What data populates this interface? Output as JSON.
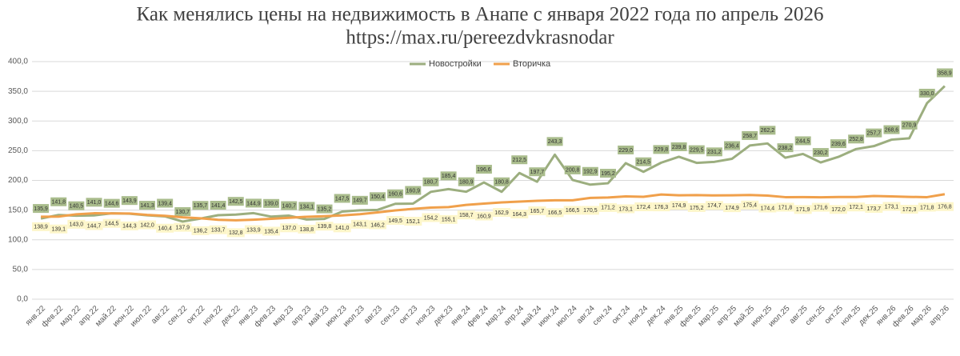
{
  "chart_data": {
    "type": "line",
    "title": "Как менялись цены на недвижимость в Анапе с января 2022 года по апрель 2026",
    "subtitle": "https://max.ru/pereezdvkrasnodar",
    "categories": [
      "янв.22",
      "фев.22",
      "мар.22",
      "апр.22",
      "май.22",
      "июн.22",
      "июл.22",
      "авг.22",
      "сен.22",
      "окт.22",
      "ноя.22",
      "дек.22",
      "янв.23",
      "фев.23",
      "мар.23",
      "апр.23",
      "май.23",
      "июн.23",
      "июл.23",
      "авг.23",
      "сен.23",
      "окт.23",
      "ноя.23",
      "дек.23",
      "янв.24",
      "фев.24",
      "мар.24",
      "апр.24",
      "май.24",
      "июн.24",
      "июл.24",
      "авг.24",
      "сен.24",
      "окт.24",
      "ноя.24",
      "дек.24",
      "янв.25",
      "фев.25",
      "мар.25",
      "апр.25",
      "май.25",
      "июн.25",
      "июл.25",
      "авг.25",
      "сен.25",
      "окт.25",
      "ноя.25",
      "дек.25",
      "янв.26",
      "фев.26",
      "мар.26",
      "апр.26"
    ],
    "series": [
      {
        "name": "Новостройки",
        "color": "#9cae7f",
        "values": [
          135.9,
          141.8,
          140.5,
          141.0,
          144.6,
          143.9,
          141.3,
          139.4,
          130.7,
          135.7,
          141.4,
          142.5,
          144.9,
          139.0,
          140.7,
          134.1,
          135.2,
          147.5,
          149.7,
          150.4,
          160.6,
          160.9,
          180.7,
          185.4,
          180.9,
          196.6,
          180.8,
          212.5,
          197.7,
          243.3,
          200.8,
          192.9,
          195.2,
          229.0,
          214.5,
          229.8,
          239.8,
          229.5,
          231.2,
          236.4,
          258.7,
          262.2,
          238.2,
          244.5,
          230.2,
          239.6,
          252.8,
          257.7,
          268.6,
          270.9,
          330.0,
          358.9
        ],
        "value_labels": [
          "135,9",
          "141,8",
          "140,5",
          "141,0",
          "144,6",
          "143,9",
          "141,3",
          "139,4",
          "130,7",
          "135,7",
          "141,4",
          "142,5",
          "144,9",
          "139,0",
          "140,7",
          "134,1",
          "135,2",
          "147,5",
          "149,7",
          "150,4",
          "160,6",
          "160,9",
          "180,7",
          "185,4",
          "180,9",
          "196,6",
          "180,8",
          "212,5",
          "197,7",
          "243,3",
          "200,8",
          "192,9",
          "195,2",
          "229,0",
          "214,5",
          "229,8",
          "239,8",
          "229,5",
          "231,2",
          "236,4",
          "258,7",
          "262,2",
          "238,2",
          "244,5",
          "230,2",
          "239,6",
          "252,8",
          "257,7",
          "268,6",
          "270,9",
          "330,0",
          "358,9"
        ]
      },
      {
        "name": "Вторичка",
        "color": "#f0a04b",
        "values": [
          138.9,
          139.1,
          143.0,
          144.7,
          144.5,
          144.3,
          142.0,
          140.4,
          137.9,
          136.2,
          133.7,
          132.8,
          133.9,
          135.4,
          137.0,
          138.8,
          139.8,
          141.0,
          143.1,
          146.2,
          149.5,
          152.1,
          154.2,
          155.1,
          158.7,
          160.9,
          162.9,
          164.3,
          165.7,
          166.5,
          166.5,
          170.5,
          171.2,
          173.1,
          172.4,
          176.3,
          174.9,
          175.2,
          174.7,
          174.9,
          175.4,
          174.4,
          171.8,
          171.9,
          171.6,
          172.0,
          172.1,
          173.7,
          173.1,
          172.3,
          171.8,
          176.8
        ],
        "value_labels": [
          "138,9",
          "139,1",
          "143,0",
          "144,7",
          "144,5",
          "144,3",
          "142,0",
          "140,4",
          "137,9",
          "136,2",
          "133,7",
          "132,8",
          "133,9",
          "135,4",
          "137,0",
          "138,8",
          "139,8",
          "141,0",
          "143,1",
          "146,2",
          "149,5",
          "152,1",
          "154,2",
          "155,1",
          "158,7",
          "160,9",
          "162,9",
          "164,3",
          "165,7",
          "166,5",
          "166,5",
          "170,5",
          "171,2",
          "173,1",
          "172,4",
          "176,3",
          "174,9",
          "175,2",
          "174,7",
          "174,9",
          "175,4",
          "174,4",
          "171,8",
          "171,9",
          "171,6",
          "172,0",
          "172,1",
          "173,7",
          "173,1",
          "172,3",
          "171,8",
          "176,8"
        ]
      }
    ],
    "ylim": [
      0,
      400
    ],
    "yticks": [
      {
        "value": 0,
        "label": "0,0"
      },
      {
        "value": 50,
        "label": "50,0"
      },
      {
        "value": 100,
        "label": "100,0"
      },
      {
        "value": 150,
        "label": "150,0"
      },
      {
        "value": 200,
        "label": "200,0"
      },
      {
        "value": 250,
        "label": "250,0"
      },
      {
        "value": 300,
        "label": "300,0"
      },
      {
        "value": 350,
        "label": "350,0"
      },
      {
        "value": 400,
        "label": "400,0"
      }
    ],
    "grid": true,
    "legend": "top"
  }
}
